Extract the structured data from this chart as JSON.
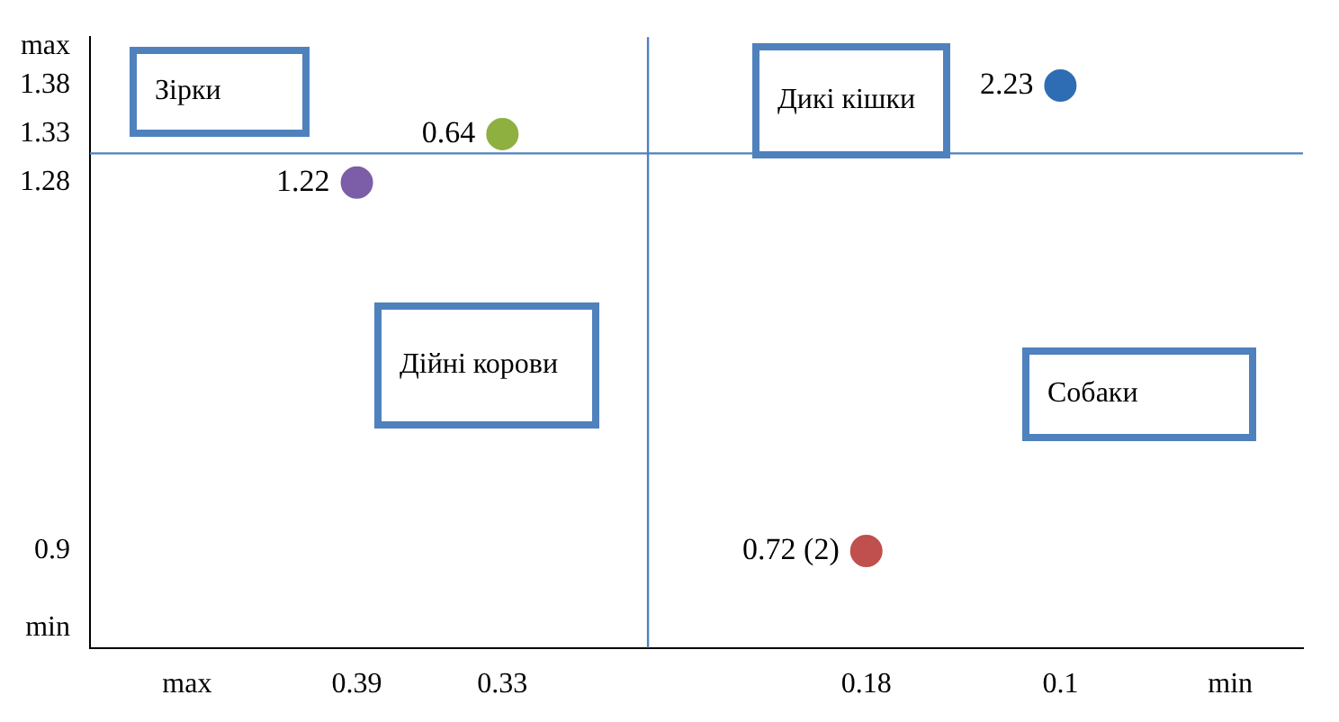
{
  "chart_data": {
    "type": "scatter",
    "x": [
      0.39,
      0.33,
      0.18,
      0.1
    ],
    "values": [
      1.28,
      1.33,
      0.9,
      1.38
    ],
    "colors": [
      "#7b5ea7",
      "#8db040",
      "#c0504d",
      "#2e6db4"
    ],
    "marker": "circle",
    "xlim": [
      0.5,
      0.0
    ],
    "xticks": [
      {
        "value": 0.46,
        "label": "max"
      },
      0.39,
      0.33,
      0.18,
      0.1,
      {
        "value": 0.03,
        "label": "min"
      }
    ],
    "ylim": [
      0.8,
      1.43
    ],
    "yticks": [
      {
        "value": 0.82,
        "label": "min"
      },
      0.9,
      1.28,
      1.33,
      1.38,
      {
        "value": 1.42,
        "label": "max"
      }
    ],
    "ref_lines": [
      {
        "axis": "x",
        "value": 0.27,
        "color": "#4f81bd"
      },
      {
        "axis": "y",
        "value": 1.31,
        "color": "#4f81bd"
      }
    ],
    "annotations": [
      "Зірки",
      "Дикі кішки",
      "Дійні корови",
      "Собаки",
      {
        "text": "1.22",
        "x": 0.39,
        "y": 1.28
      },
      {
        "text": "0.64",
        "x": 0.33,
        "y": 1.33
      },
      {
        "text": "0.72 (2)",
        "x": 0.18,
        "y": 0.9
      },
      {
        "text": "2.23",
        "x": 0.1,
        "y": 1.38
      }
    ]
  }
}
